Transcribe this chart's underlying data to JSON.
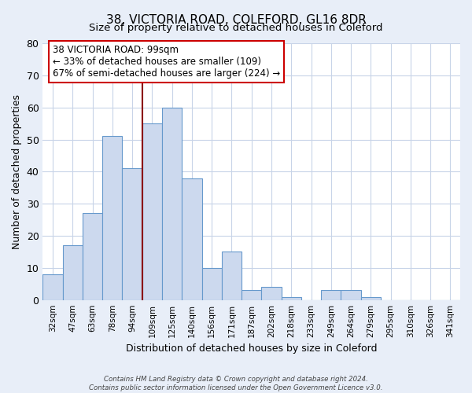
{
  "title": "38, VICTORIA ROAD, COLEFORD, GL16 8DR",
  "subtitle": "Size of property relative to detached houses in Coleford",
  "xlabel": "Distribution of detached houses by size in Coleford",
  "ylabel": "Number of detached properties",
  "categories": [
    "32sqm",
    "47sqm",
    "63sqm",
    "78sqm",
    "94sqm",
    "109sqm",
    "125sqm",
    "140sqm",
    "156sqm",
    "171sqm",
    "187sqm",
    "202sqm",
    "218sqm",
    "233sqm",
    "249sqm",
    "264sqm",
    "279sqm",
    "295sqm",
    "310sqm",
    "326sqm",
    "341sqm"
  ],
  "values": [
    8,
    17,
    27,
    51,
    41,
    55,
    60,
    38,
    10,
    15,
    3,
    4,
    1,
    0,
    3,
    3,
    1,
    0,
    0,
    0,
    0
  ],
  "bar_color": "#ccd9ee",
  "bar_edge_color": "#6699cc",
  "highlight_index": 4,
  "highlight_line_color": "#8b0000",
  "annotation_box_color": "#ffffff",
  "annotation_box_edge_color": "#cc0000",
  "annotation_line1": "38 VICTORIA ROAD: 99sqm",
  "annotation_line2": "← 33% of detached houses are smaller (109)",
  "annotation_line3": "67% of semi-detached houses are larger (224) →",
  "ylim": [
    0,
    80
  ],
  "yticks": [
    0,
    10,
    20,
    30,
    40,
    50,
    60,
    70,
    80
  ],
  "footer_line1": "Contains HM Land Registry data © Crown copyright and database right 2024.",
  "footer_line2": "Contains public sector information licensed under the Open Government Licence v3.0.",
  "bg_color": "#e8eef8",
  "plot_bg_color": "#ffffff",
  "grid_color": "#c8d4e8"
}
